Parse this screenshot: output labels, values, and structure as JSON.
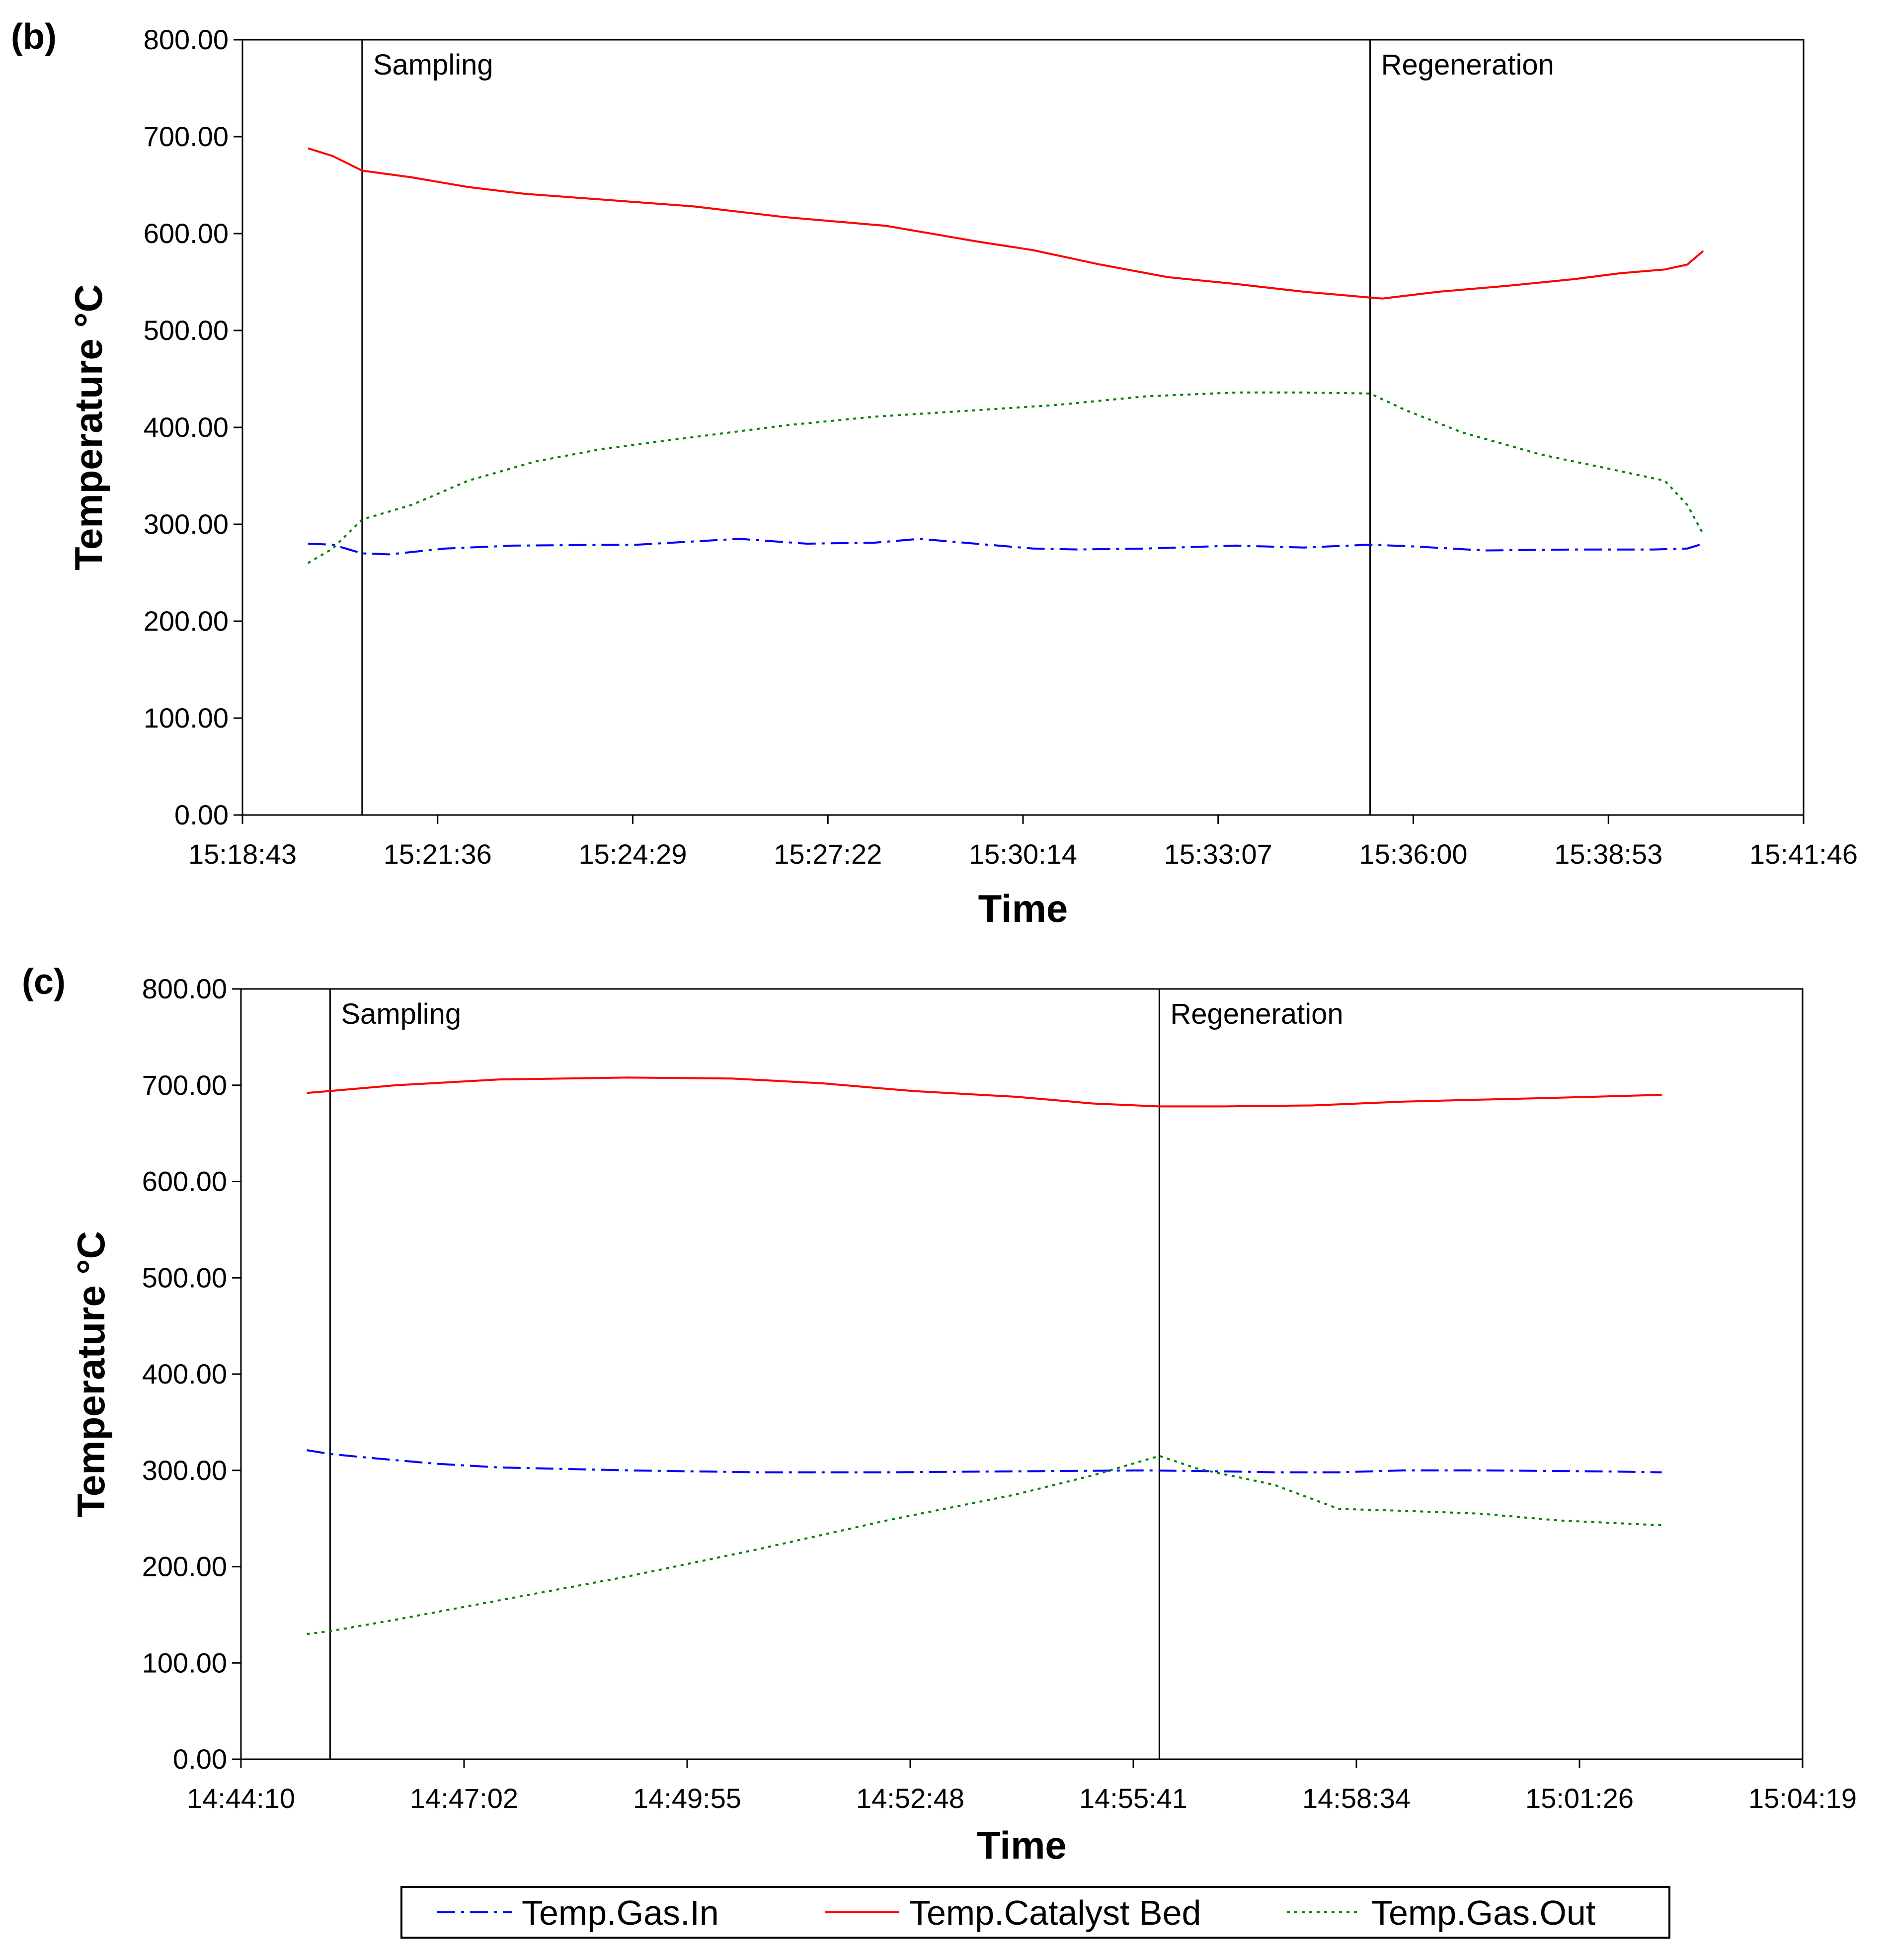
{
  "chart_data": [
    {
      "type": "line",
      "panel_label": "(b)",
      "xlabel": "Time",
      "ylabel": "Temperature °C",
      "ylim": [
        0,
        800
      ],
      "yticks": [
        "0.00",
        "100.00",
        "200.00",
        "300.00",
        "400.00",
        "500.00",
        "600.00",
        "700.00",
        "800.00"
      ],
      "xlim_seconds": [
        0,
        1383
      ],
      "xticks": [
        "15:18:43",
        "15:21:36",
        "15:24:29",
        "15:27:22",
        "15:30:14",
        "15:33:07",
        "15:36:00",
        "15:38:53",
        "15:41:46"
      ],
      "markers": [
        {
          "label": "Sampling",
          "t": 106
        },
        {
          "label": "Regeneration",
          "t": 999
        }
      ],
      "series": [
        {
          "name": "Temp.Gas.In",
          "color": "#0000ff",
          "style": "dashdot",
          "x": [
            58,
            80,
            106,
            130,
            180,
            240,
            350,
            440,
            500,
            560,
            600,
            700,
            740,
            800,
            880,
            940,
            999,
            1040,
            1100,
            1180,
            1250,
            1280,
            1294
          ],
          "y": [
            280,
            279,
            270,
            269,
            275,
            278,
            279,
            285,
            280,
            281,
            285,
            275,
            274,
            275,
            278,
            276,
            279,
            277,
            273,
            274,
            274,
            275,
            280
          ]
        },
        {
          "name": "Temp.Catalyst Bed",
          "color": "#ff0000",
          "style": "solid",
          "x": [
            58,
            80,
            106,
            150,
            200,
            250,
            320,
            400,
            480,
            570,
            650,
            700,
            760,
            820,
            880,
            940,
            999,
            1010,
            1060,
            1120,
            1180,
            1220,
            1260,
            1280,
            1294
          ],
          "y": [
            688,
            680,
            665,
            658,
            648,
            641,
            635,
            628,
            617,
            608,
            592,
            583,
            568,
            555,
            548,
            540,
            534,
            533,
            540,
            546,
            553,
            559,
            563,
            568,
            582
          ]
        },
        {
          "name": "Temp.Gas.Out",
          "color": "#008000",
          "style": "dotted",
          "x": [
            58,
            80,
            106,
            150,
            200,
            260,
            320,
            400,
            480,
            560,
            640,
            720,
            800,
            880,
            940,
            999,
            1030,
            1080,
            1150,
            1220,
            1260,
            1280,
            1294
          ],
          "y": [
            260,
            275,
            305,
            320,
            345,
            365,
            378,
            390,
            402,
            411,
            417,
            423,
            432,
            436,
            436,
            435,
            418,
            395,
            372,
            355,
            345,
            320,
            290
          ]
        }
      ]
    },
    {
      "type": "line",
      "panel_label": "(c)",
      "xlabel": "Time",
      "ylabel": "Temperature °C",
      "ylim": [
        0,
        800
      ],
      "yticks": [
        "0.00",
        "100.00",
        "200.00",
        "300.00",
        "400.00",
        "500.00",
        "600.00",
        "700.00",
        "800.00"
      ],
      "xlim_seconds": [
        0,
        1209
      ],
      "xticks": [
        "14:44:10",
        "14:47:02",
        "14:49:55",
        "14:52:48",
        "14:55:41",
        "14:58:34",
        "15:01:26",
        "15:04:19"
      ],
      "markers": [
        {
          "label": "Sampling",
          "t": 69
        },
        {
          "label": "Regeneration",
          "t": 711
        }
      ],
      "series": [
        {
          "name": "Temp.Gas.In",
          "color": "#0000ff",
          "style": "dashdot",
          "x": [
            51,
            69,
            100,
            150,
            200,
            300,
            400,
            500,
            600,
            700,
            760,
            800,
            850,
            900,
            960,
            1050,
            1100
          ],
          "y": [
            321,
            317,
            313,
            307,
            303,
            300,
            298,
            298,
            299,
            300,
            299,
            298,
            298,
            300,
            300,
            299,
            298
          ]
        },
        {
          "name": "Temp.Catalyst Bed",
          "color": "#ff0000",
          "style": "solid",
          "x": [
            51,
            69,
            120,
            200,
            300,
            380,
            450,
            520,
            600,
            660,
            711,
            760,
            830,
            900,
            960,
            1020,
            1100
          ],
          "y": [
            692,
            694,
            700,
            706,
            708,
            707,
            702,
            694,
            688,
            681,
            678,
            678,
            679,
            683,
            685,
            687,
            690
          ]
        },
        {
          "name": "Temp.Gas.Out",
          "color": "#008000",
          "style": "dotted",
          "x": [
            51,
            69,
            120,
            200,
            300,
            400,
            500,
            600,
            660,
            711,
            740,
            800,
            850,
            900,
            960,
            1020,
            1100
          ],
          "y": [
            130,
            133,
            145,
            165,
            190,
            218,
            248,
            275,
            295,
            315,
            302,
            285,
            260,
            258,
            255,
            248,
            243
          ]
        }
      ]
    }
  ],
  "legend": [
    {
      "name": "Temp.Gas.In",
      "color": "#0000ff",
      "style": "dashdot"
    },
    {
      "name": "Temp.Catalyst Bed",
      "color": "#ff0000",
      "style": "solid"
    },
    {
      "name": "Temp.Gas.Out",
      "color": "#008000",
      "style": "dotted"
    }
  ]
}
